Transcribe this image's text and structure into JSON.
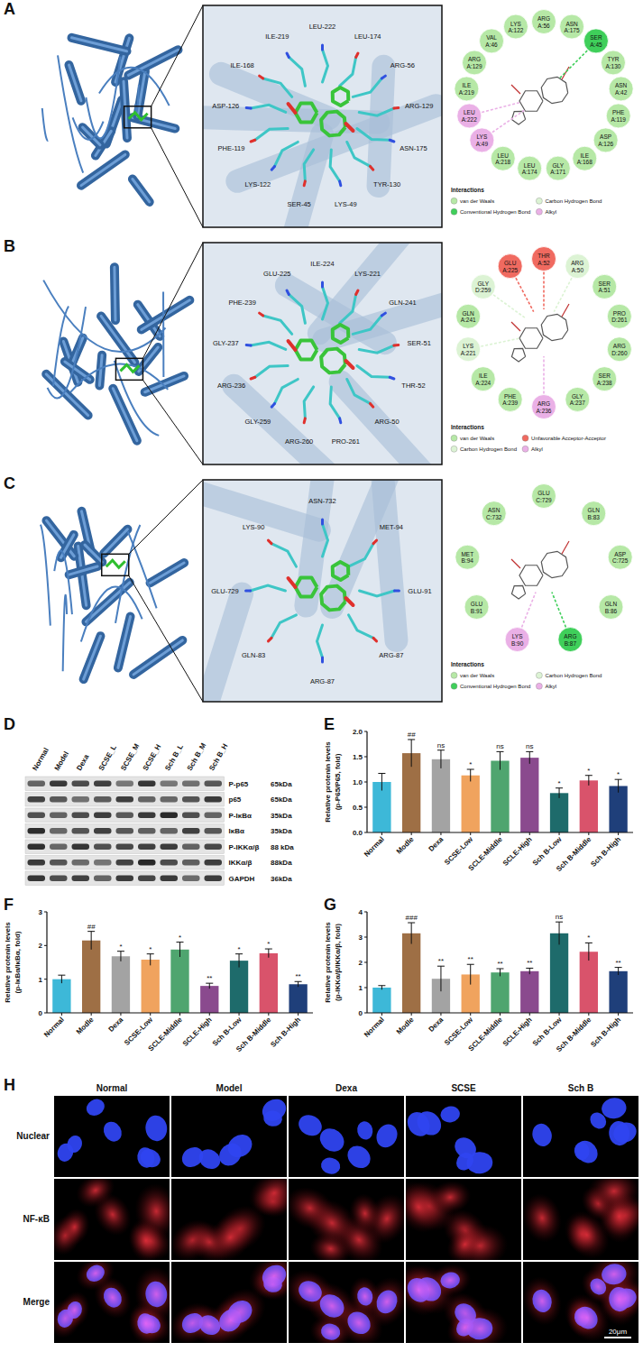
{
  "docking": [
    {
      "letter": "A",
      "zoom_residues": [
        "LEU-222",
        "LEU-174",
        "ARG-56",
        "ARG-129",
        "ASN-175",
        "TYR-130",
        "LYS-49",
        "SER-45",
        "LYS-122",
        "PHE-119",
        "ASP-126",
        "ILE-168",
        "ILE-219"
      ],
      "diagram_residues": [
        {
          "name": "ARG",
          "chain": "A:56",
          "color": "#b6e8a6"
        },
        {
          "name": "ASN",
          "chain": "A:175",
          "color": "#b6e8a6"
        },
        {
          "name": "SER",
          "chain": "A:45",
          "color": "#3fcf5a"
        },
        {
          "name": "TYR",
          "chain": "A:130",
          "color": "#b6e8a6"
        },
        {
          "name": "ASN",
          "chain": "A:42",
          "color": "#b6e8a6"
        },
        {
          "name": "PHE",
          "chain": "A:119",
          "color": "#b6e8a6"
        },
        {
          "name": "ASP",
          "chain": "A:126",
          "color": "#b6e8a6"
        },
        {
          "name": "ILE",
          "chain": "A:168",
          "color": "#b6e8a6"
        },
        {
          "name": "GLY",
          "chain": "A:171",
          "color": "#b6e8a6"
        },
        {
          "name": "LEU",
          "chain": "A:174",
          "color": "#b6e8a6"
        },
        {
          "name": "LEU",
          "chain": "A:218",
          "color": "#b6e8a6"
        },
        {
          "name": "LYS",
          "chain": "A:49",
          "color": "#eab0e6"
        },
        {
          "name": "LEU",
          "chain": "A:222",
          "color": "#eab0e6"
        },
        {
          "name": "ILE",
          "chain": "A:219",
          "color": "#b6e8a6"
        },
        {
          "name": "ARG",
          "chain": "A:129",
          "color": "#b6e8a6"
        },
        {
          "name": "VAL",
          "chain": "A:46",
          "color": "#b6e8a6"
        },
        {
          "name": "LYS",
          "chain": "A:122",
          "color": "#b6e8a6"
        }
      ],
      "legend_title": "Interactions",
      "legend": [
        {
          "label": "van der Waals",
          "color": "#b6e8a6"
        },
        {
          "label": "Conventional Hydrogen Bond",
          "color": "#3fcf5a"
        },
        {
          "label": "Carbon Hydrogen Bond",
          "color": "#dcf3d4"
        },
        {
          "label": "Alkyl",
          "color": "#eab0e6"
        }
      ]
    },
    {
      "letter": "B",
      "zoom_residues": [
        "ILE-224",
        "LYS-221",
        "GLN-241",
        "SER-51",
        "THR-52",
        "ARG-50",
        "PRO-261",
        "ARG-260",
        "GLY-259",
        "ARG-236",
        "GLY-237",
        "PHE-239",
        "GLU-225"
      ],
      "diagram_residues": [
        {
          "name": "THR",
          "chain": "A:52",
          "color": "#f06a60"
        },
        {
          "name": "ARG",
          "chain": "A:50",
          "color": "#dcf3d4"
        },
        {
          "name": "SER",
          "chain": "A:51",
          "color": "#b6e8a6"
        },
        {
          "name": "PRO",
          "chain": "D:261",
          "color": "#b6e8a6"
        },
        {
          "name": "ARG",
          "chain": "D:260",
          "color": "#b6e8a6"
        },
        {
          "name": "SER",
          "chain": "A:238",
          "color": "#b6e8a6"
        },
        {
          "name": "GLY",
          "chain": "A:237",
          "color": "#b6e8a6"
        },
        {
          "name": "ARG",
          "chain": "A:236",
          "color": "#eab0e6"
        },
        {
          "name": "PHE",
          "chain": "A:239",
          "color": "#b6e8a6"
        },
        {
          "name": "ILE",
          "chain": "A:224",
          "color": "#b6e8a6"
        },
        {
          "name": "LYS",
          "chain": "A:221",
          "color": "#dcf3d4"
        },
        {
          "name": "GLN",
          "chain": "A:241",
          "color": "#b6e8a6"
        },
        {
          "name": "GLY",
          "chain": "D:259",
          "color": "#dcf3d4"
        },
        {
          "name": "GLU",
          "chain": "A:225",
          "color": "#f06a60"
        }
      ],
      "legend_title": "Interactions",
      "legend": [
        {
          "label": "van der Waals",
          "color": "#b6e8a6"
        },
        {
          "label": "Carbon Hydrogen Bond",
          "color": "#dcf3d4"
        },
        {
          "label": "Unfavorable Acceptor-Acceptor",
          "color": "#f06a60"
        },
        {
          "label": "Alkyl",
          "color": "#eab0e6"
        }
      ]
    },
    {
      "letter": "C",
      "zoom_residues": [
        "ASN-732",
        "MET-94",
        "GLU-91",
        "ARG-87",
        "ARG-87",
        "GLN-83",
        "GLU-729",
        "LYS-90"
      ],
      "diagram_residues": [
        {
          "name": "GLU",
          "chain": "C:729",
          "color": "#b6e8a6"
        },
        {
          "name": "GLN",
          "chain": "B:83",
          "color": "#b6e8a6"
        },
        {
          "name": "ASP",
          "chain": "C:725",
          "color": "#b6e8a6"
        },
        {
          "name": "GLN",
          "chain": "B:86",
          "color": "#b6e8a6"
        },
        {
          "name": "ARG",
          "chain": "B:87",
          "color": "#3fcf5a"
        },
        {
          "name": "LYS",
          "chain": "B:90",
          "color": "#eab0e6"
        },
        {
          "name": "GLU",
          "chain": "B:91",
          "color": "#b6e8a6"
        },
        {
          "name": "MET",
          "chain": "B:94",
          "color": "#b6e8a6"
        },
        {
          "name": "ASN",
          "chain": "C:732",
          "color": "#b6e8a6"
        }
      ],
      "legend_title": "Interactions",
      "legend": [
        {
          "label": "van der Waals",
          "color": "#b6e8a6"
        },
        {
          "label": "Conventional Hydrogen Bond",
          "color": "#3fcf5a"
        },
        {
          "label": "Carbon Hydrogen Bond",
          "color": "#dcf3d4"
        },
        {
          "label": "Alkyl",
          "color": "#eab0e6"
        }
      ]
    }
  ],
  "western_blot": {
    "letter": "D",
    "lanes": [
      "Normal",
      "Model",
      "Dexa",
      "SCSE_L",
      "SCSE_M",
      "SCSE_H",
      "Sch B_L",
      "Sch B_M",
      "Sch B_H"
    ],
    "rows": [
      {
        "protein": "P-p65",
        "size": "65kDa"
      },
      {
        "protein": "p65",
        "size": "65kDa"
      },
      {
        "protein": "P-IκBα",
        "size": "35kDa"
      },
      {
        "protein": "IκBα",
        "size": "35kDa"
      },
      {
        "protein": "P-IKKα/β",
        "size": "88 kDa"
      },
      {
        "protein": "IKKα/β",
        "size": "88kDa"
      },
      {
        "protein": "GAPDH",
        "size": "36kDa"
      }
    ]
  },
  "chart_data": [
    {
      "letter": "E",
      "type": "bar",
      "y_label": "Relative protenin levels",
      "y_sublabel": "(p-P65/P65, fold)",
      "categories": [
        "Normal",
        "Modle",
        "Dexa",
        "SCSE-Low",
        "SCLE-Middle",
        "SCLE-High",
        "Sch B-Low",
        "Sch B-Middle",
        "Sch B-High"
      ],
      "values": [
        1.0,
        1.57,
        1.45,
        1.13,
        1.42,
        1.48,
        0.78,
        1.03,
        0.92
      ],
      "errors": [
        0.17,
        0.27,
        0.18,
        0.12,
        0.18,
        0.12,
        0.1,
        0.1,
        0.13
      ],
      "annotations": [
        null,
        "##",
        "ns",
        "*",
        "ns",
        "ns",
        "*",
        "*",
        "*"
      ],
      "colors": [
        "#3db8d8",
        "#9e6f45",
        "#a3a3a3",
        "#f0a35e",
        "#4fa56f",
        "#8a4a8e",
        "#1e6b6b",
        "#d9536b",
        "#1f3f7a"
      ],
      "ylim": [
        0,
        2
      ],
      "yticks": [
        {
          "value": 0,
          "label": "0.0"
        },
        {
          "value": 0.5,
          "label": "0.5"
        },
        {
          "value": 1,
          "label": "1.0"
        },
        {
          "value": 1.5,
          "label": "1.5"
        },
        {
          "value": 2,
          "label": "2.0"
        }
      ]
    },
    {
      "letter": "F",
      "type": "bar",
      "y_label": "Relative protenin levels",
      "y_sublabel": "(p-IκBα/IκBα, fold)",
      "categories": [
        "Normal",
        "Modle",
        "Dexa",
        "SCSE-Low",
        "SCLE-Middle",
        "SCLE-High",
        "Sch B-Low",
        "Sch B-Middle",
        "Sch B-High"
      ],
      "values": [
        1.0,
        2.15,
        1.68,
        1.58,
        1.88,
        0.8,
        1.55,
        1.77,
        0.85
      ],
      "errors": [
        0.12,
        0.27,
        0.15,
        0.17,
        0.22,
        0.08,
        0.2,
        0.13,
        0.08
      ],
      "annotations": [
        null,
        "##",
        "*",
        "*",
        "*",
        "**",
        "*",
        "*",
        "**"
      ],
      "colors": [
        "#3db8d8",
        "#9e6f45",
        "#a3a3a3",
        "#f0a35e",
        "#4fa56f",
        "#8a4a8e",
        "#1e6b6b",
        "#d9536b",
        "#1f3f7a"
      ],
      "ylim": [
        0,
        3
      ],
      "yticks": [
        0,
        1,
        2,
        3
      ]
    },
    {
      "letter": "G",
      "type": "bar",
      "y_label": "Relative protenin levels",
      "y_sublabel": "(p-IKKα/β/IKKα/β, fold)",
      "categories": [
        "Normal",
        "Modle",
        "Dexa",
        "SCSE-Low",
        "SCLE-Middle",
        "SCLE-High",
        "Sch B-Low",
        "Sch B-Middle",
        "Sch B-High"
      ],
      "values": [
        1.0,
        3.15,
        1.35,
        1.52,
        1.6,
        1.65,
        3.15,
        2.42,
        1.65
      ],
      "errors": [
        0.08,
        0.42,
        0.5,
        0.4,
        0.15,
        0.12,
        0.45,
        0.35,
        0.15
      ],
      "annotations": [
        null,
        "###",
        "**",
        "**",
        "**",
        "**",
        "ns",
        "*",
        "**"
      ],
      "colors": [
        "#3db8d8",
        "#9e6f45",
        "#a3a3a3",
        "#f0a35e",
        "#4fa56f",
        "#8a4a8e",
        "#1e6b6b",
        "#d9536b",
        "#1f3f7a"
      ],
      "ylim": [
        0,
        4
      ],
      "yticks": [
        0,
        1,
        2,
        3,
        4
      ]
    }
  ],
  "immunofluorescence": {
    "letter": "H",
    "columns": [
      "Normal",
      "Model",
      "Dexa",
      "SCSE",
      "Sch B"
    ],
    "rows": [
      "Nuclear",
      "NF-κB",
      "Merge"
    ],
    "scale_bar": "20μm"
  }
}
